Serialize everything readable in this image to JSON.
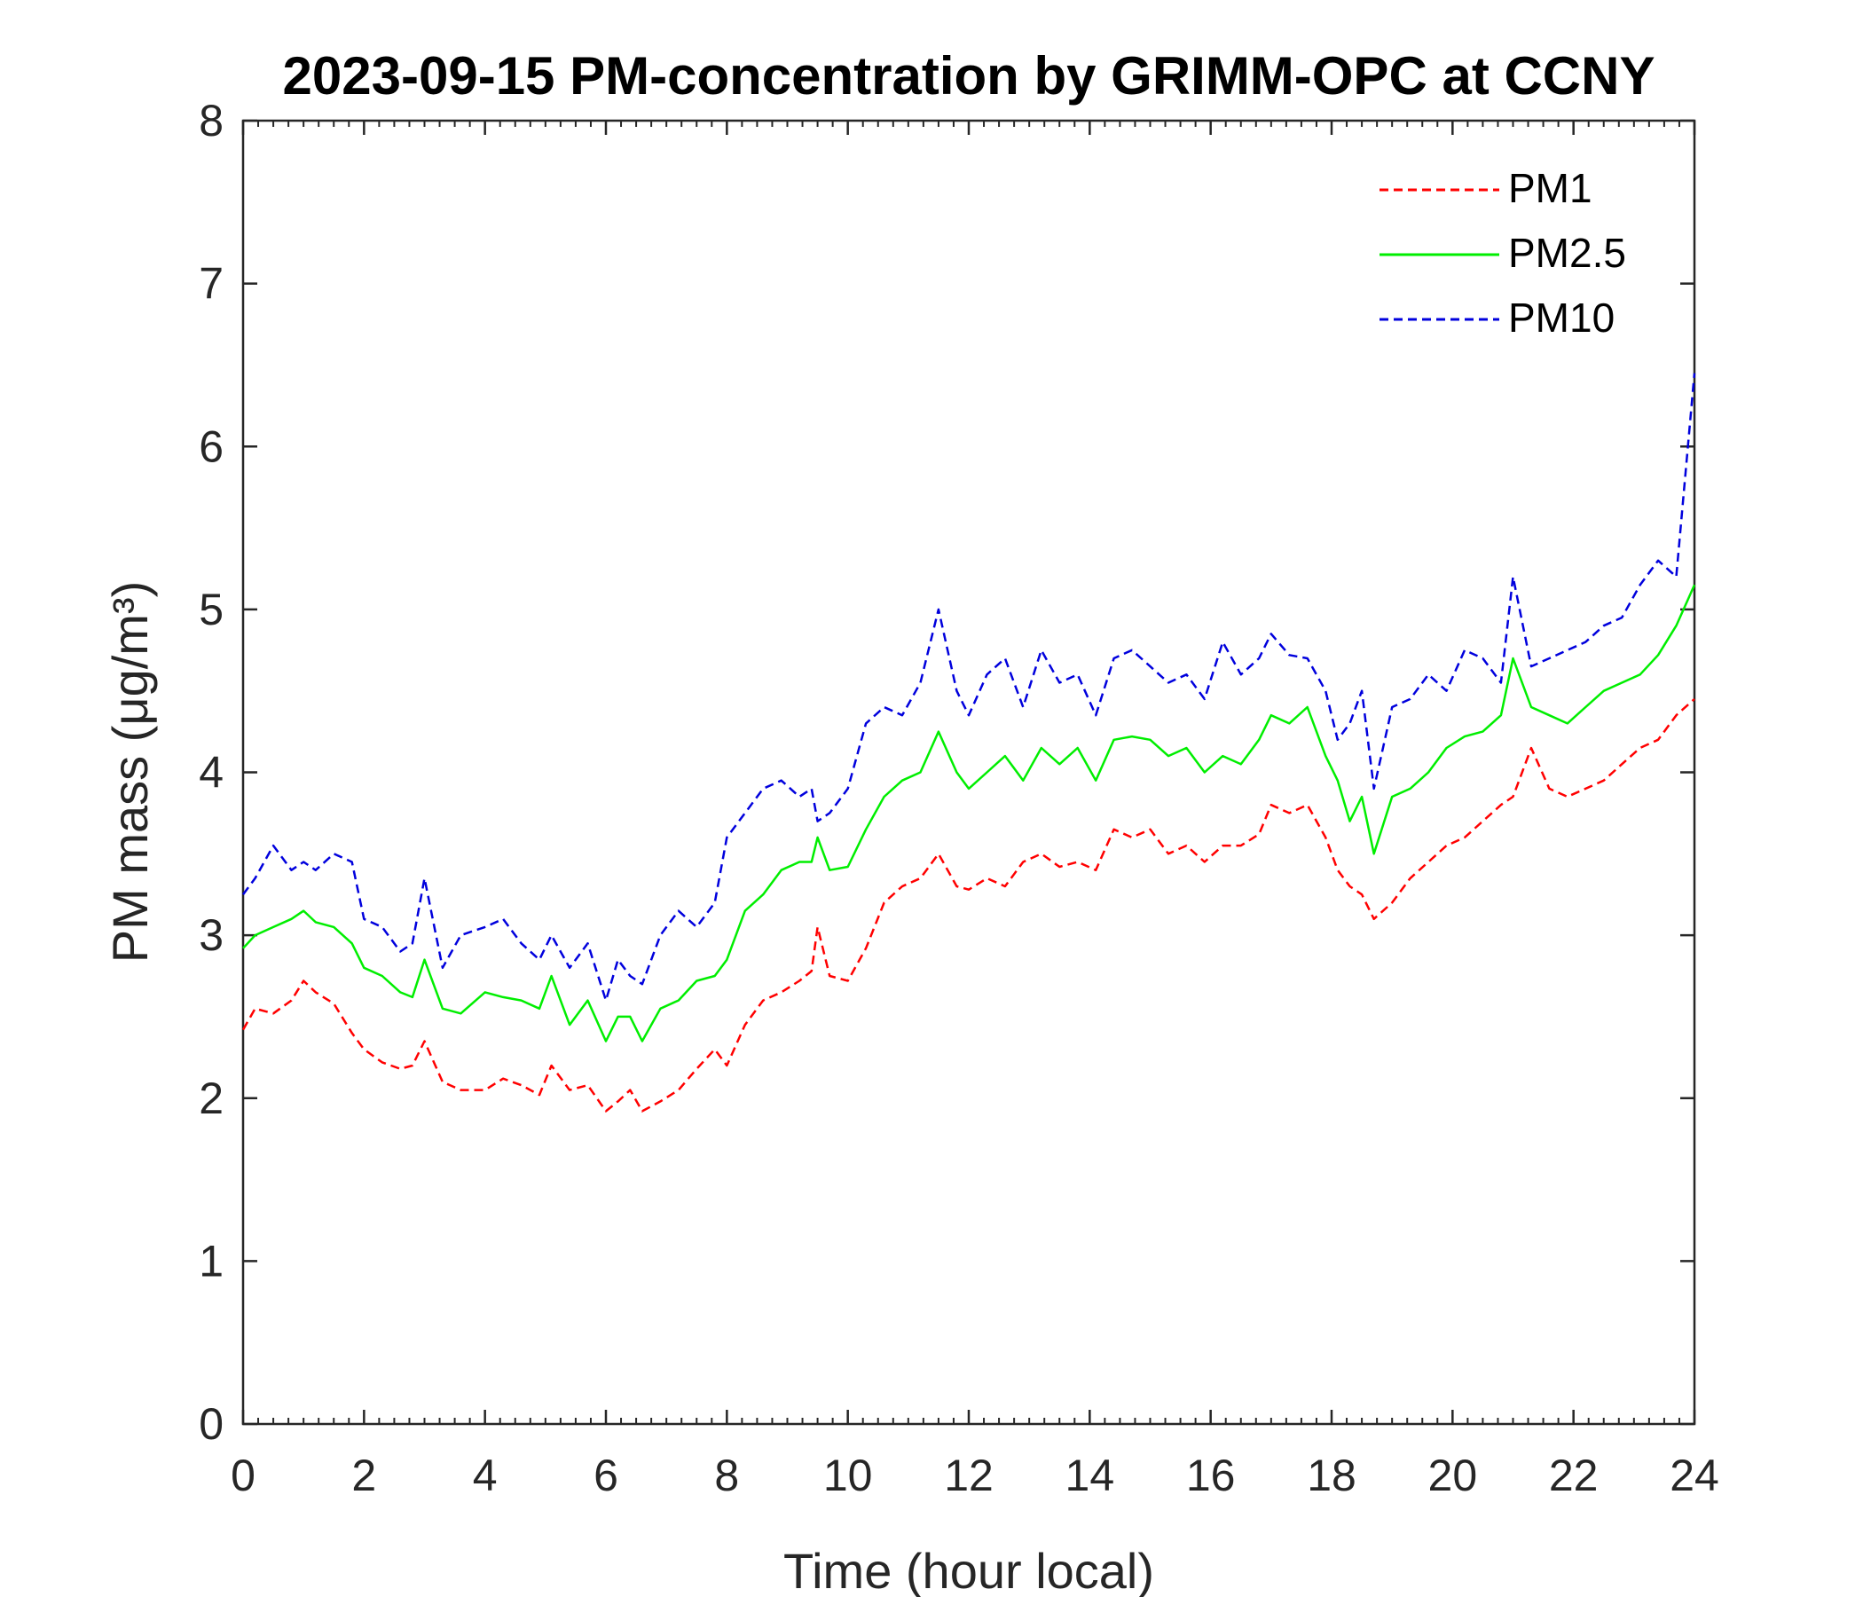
{
  "chart_data": {
    "type": "line",
    "title": "2023-09-15 PM-concentration by GRIMM-OPC at CCNY",
    "xlabel": "Time (hour local)",
    "ylabel": "PM mass (μg/m³)",
    "xlim": [
      0,
      24
    ],
    "ylim": [
      0,
      8
    ],
    "xticks": [
      "0",
      "2",
      "4",
      "6",
      "8",
      "10",
      "12",
      "14",
      "16",
      "18",
      "20",
      "22",
      "24"
    ],
    "yticks": [
      "0",
      "1",
      "2",
      "3",
      "4",
      "5",
      "6",
      "7",
      "8"
    ],
    "legend_position": "top-right",
    "series": [
      {
        "name": "PM1",
        "color": "#ff0000",
        "style": "dashed",
        "x": [
          0,
          0.2,
          0.5,
          0.8,
          1.0,
          1.2,
          1.5,
          1.8,
          2.0,
          2.3,
          2.6,
          2.8,
          3.0,
          3.3,
          3.6,
          4.0,
          4.3,
          4.6,
          4.9,
          5.1,
          5.4,
          5.7,
          6.0,
          6.2,
          6.4,
          6.6,
          6.9,
          7.2,
          7.5,
          7.8,
          8.0,
          8.3,
          8.6,
          8.9,
          9.2,
          9.4,
          9.5,
          9.7,
          10.0,
          10.3,
          10.6,
          10.9,
          11.2,
          11.5,
          11.8,
          12.0,
          12.3,
          12.6,
          12.9,
          13.2,
          13.5,
          13.8,
          14.1,
          14.4,
          14.7,
          15.0,
          15.3,
          15.6,
          15.9,
          16.2,
          16.5,
          16.8,
          17.0,
          17.3,
          17.6,
          17.9,
          18.1,
          18.3,
          18.5,
          18.7,
          19.0,
          19.3,
          19.6,
          19.9,
          20.2,
          20.5,
          20.8,
          21.0,
          21.3,
          21.6,
          21.9,
          22.2,
          22.5,
          22.8,
          23.1,
          23.4,
          23.7,
          24.0
        ],
        "values": [
          2.42,
          2.55,
          2.52,
          2.6,
          2.72,
          2.65,
          2.58,
          2.4,
          2.3,
          2.22,
          2.18,
          2.2,
          2.35,
          2.1,
          2.05,
          2.05,
          2.12,
          2.08,
          2.02,
          2.2,
          2.05,
          2.08,
          1.92,
          1.98,
          2.05,
          1.92,
          1.98,
          2.05,
          2.18,
          2.3,
          2.2,
          2.45,
          2.6,
          2.65,
          2.72,
          2.78,
          3.05,
          2.75,
          2.72,
          2.92,
          3.2,
          3.3,
          3.35,
          3.5,
          3.3,
          3.28,
          3.35,
          3.3,
          3.45,
          3.5,
          3.42,
          3.45,
          3.4,
          3.65,
          3.6,
          3.65,
          3.5,
          3.55,
          3.45,
          3.55,
          3.55,
          3.62,
          3.8,
          3.75,
          3.8,
          3.6,
          3.4,
          3.3,
          3.25,
          3.1,
          3.2,
          3.35,
          3.45,
          3.55,
          3.6,
          3.7,
          3.8,
          3.85,
          4.15,
          3.9,
          3.85,
          3.9,
          3.95,
          4.05,
          4.15,
          4.2,
          4.35,
          4.45
        ]
      },
      {
        "name": "PM2.5",
        "color": "#00ee00",
        "style": "solid",
        "x": [
          0,
          0.2,
          0.5,
          0.8,
          1.0,
          1.2,
          1.5,
          1.8,
          2.0,
          2.3,
          2.6,
          2.8,
          3.0,
          3.3,
          3.6,
          4.0,
          4.3,
          4.6,
          4.9,
          5.1,
          5.4,
          5.7,
          6.0,
          6.2,
          6.4,
          6.6,
          6.9,
          7.2,
          7.5,
          7.8,
          8.0,
          8.3,
          8.6,
          8.9,
          9.2,
          9.4,
          9.5,
          9.7,
          10.0,
          10.3,
          10.6,
          10.9,
          11.2,
          11.5,
          11.8,
          12.0,
          12.3,
          12.6,
          12.9,
          13.2,
          13.5,
          13.8,
          14.1,
          14.4,
          14.7,
          15.0,
          15.3,
          15.6,
          15.9,
          16.2,
          16.5,
          16.8,
          17.0,
          17.3,
          17.6,
          17.9,
          18.1,
          18.3,
          18.5,
          18.7,
          19.0,
          19.3,
          19.6,
          19.9,
          20.2,
          20.5,
          20.8,
          21.0,
          21.3,
          21.6,
          21.9,
          22.2,
          22.5,
          22.8,
          23.1,
          23.4,
          23.7,
          24.0
        ],
        "values": [
          2.92,
          3.0,
          3.05,
          3.1,
          3.15,
          3.08,
          3.05,
          2.95,
          2.8,
          2.75,
          2.65,
          2.62,
          2.85,
          2.55,
          2.52,
          2.65,
          2.62,
          2.6,
          2.55,
          2.75,
          2.45,
          2.6,
          2.35,
          2.5,
          2.5,
          2.35,
          2.55,
          2.6,
          2.72,
          2.75,
          2.85,
          3.15,
          3.25,
          3.4,
          3.45,
          3.45,
          3.6,
          3.4,
          3.42,
          3.65,
          3.85,
          3.95,
          4.0,
          4.25,
          4.0,
          3.9,
          4.0,
          4.1,
          3.95,
          4.15,
          4.05,
          4.15,
          3.95,
          4.2,
          4.22,
          4.2,
          4.1,
          4.15,
          4.0,
          4.1,
          4.05,
          4.2,
          4.35,
          4.3,
          4.4,
          4.1,
          3.95,
          3.7,
          3.85,
          3.5,
          3.85,
          3.9,
          4.0,
          4.15,
          4.22,
          4.25,
          4.35,
          4.7,
          4.4,
          4.35,
          4.3,
          4.4,
          4.5,
          4.55,
          4.6,
          4.72,
          4.9,
          5.15
        ]
      },
      {
        "name": "PM10",
        "color": "#0000dd",
        "style": "dashed",
        "x": [
          0,
          0.2,
          0.5,
          0.8,
          1.0,
          1.2,
          1.5,
          1.8,
          2.0,
          2.3,
          2.6,
          2.8,
          3.0,
          3.3,
          3.6,
          4.0,
          4.3,
          4.6,
          4.9,
          5.1,
          5.4,
          5.7,
          6.0,
          6.2,
          6.4,
          6.6,
          6.9,
          7.2,
          7.5,
          7.8,
          8.0,
          8.3,
          8.6,
          8.9,
          9.2,
          9.4,
          9.5,
          9.7,
          10.0,
          10.3,
          10.6,
          10.9,
          11.2,
          11.5,
          11.8,
          12.0,
          12.3,
          12.6,
          12.9,
          13.2,
          13.5,
          13.8,
          14.1,
          14.4,
          14.7,
          15.0,
          15.3,
          15.6,
          15.9,
          16.2,
          16.5,
          16.8,
          17.0,
          17.3,
          17.6,
          17.9,
          18.1,
          18.3,
          18.5,
          18.7,
          19.0,
          19.3,
          19.6,
          19.9,
          20.2,
          20.5,
          20.8,
          21.0,
          21.3,
          21.6,
          21.9,
          22.2,
          22.5,
          22.8,
          23.1,
          23.4,
          23.7,
          24.0
        ],
        "values": [
          3.25,
          3.35,
          3.55,
          3.4,
          3.45,
          3.4,
          3.5,
          3.45,
          3.1,
          3.05,
          2.9,
          2.95,
          3.35,
          2.8,
          3.0,
          3.05,
          3.1,
          2.95,
          2.85,
          3.0,
          2.8,
          2.95,
          2.6,
          2.85,
          2.75,
          2.7,
          3.0,
          3.15,
          3.05,
          3.2,
          3.6,
          3.75,
          3.9,
          3.95,
          3.85,
          3.9,
          3.7,
          3.75,
          3.9,
          4.3,
          4.4,
          4.35,
          4.55,
          5.0,
          4.5,
          4.35,
          4.6,
          4.7,
          4.4,
          4.75,
          4.55,
          4.6,
          4.35,
          4.7,
          4.75,
          4.65,
          4.55,
          4.6,
          4.45,
          4.8,
          4.6,
          4.7,
          4.85,
          4.72,
          4.7,
          4.5,
          4.2,
          4.3,
          4.5,
          3.9,
          4.4,
          4.45,
          4.6,
          4.5,
          4.75,
          4.7,
          4.55,
          5.2,
          4.65,
          4.7,
          4.75,
          4.8,
          4.9,
          4.95,
          5.15,
          5.3,
          5.2,
          6.45
        ]
      }
    ]
  }
}
